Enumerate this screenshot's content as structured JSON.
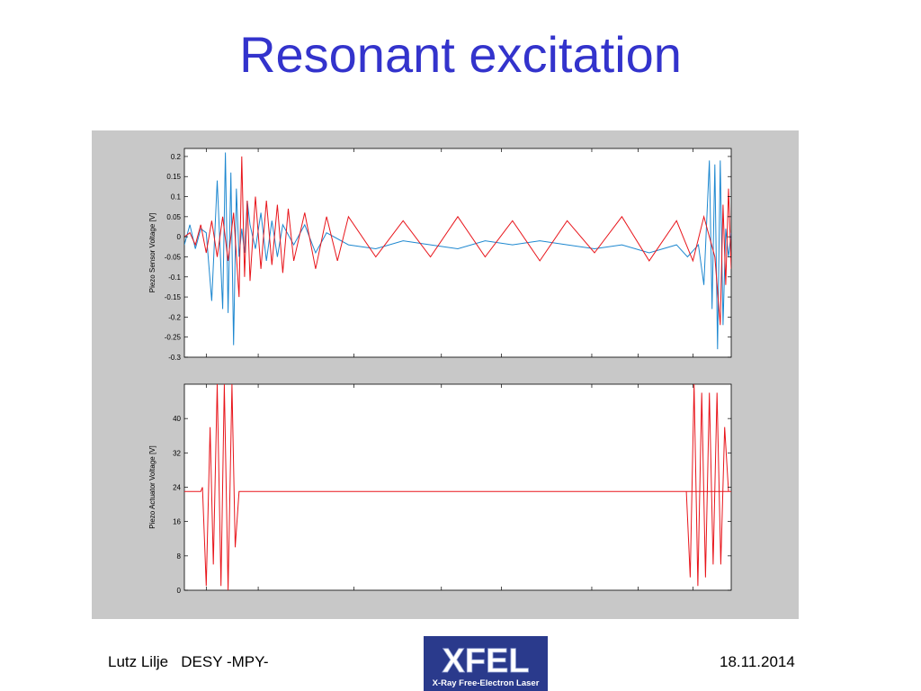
{
  "slide": {
    "title": "Resonant excitation",
    "footer_left": "Lutz Lilje   DESY -MPY-",
    "footer_date": "18.11.2014",
    "logo_text": "XFEL",
    "logo_subtext": "X-Ray Free-Electron Laser"
  },
  "colors": {
    "title": "#3333cc",
    "figure_background": "#c8c8c8",
    "series_red": "#e8151b",
    "series_blue": "#1e88d0",
    "logo_background": "#2a3a8c"
  },
  "chart_data": [
    {
      "type": "line",
      "ylabel": "Piezo Sensor Voltage [V]",
      "xlabel": "",
      "title": "",
      "ylim": [
        -0.3,
        0.22
      ],
      "xlim": [
        0,
        1
      ],
      "yticks": [
        0.2,
        0.15,
        0.1,
        0.05,
        0,
        -0.05,
        -0.1,
        -0.15,
        -0.2,
        -0.25,
        -0.3
      ],
      "ytick_labels": [
        "0.2",
        "0.15",
        "0.1",
        "0.05",
        "0",
        "-0.05",
        "-0.1",
        "-0.15",
        "-0.2",
        "-0.25",
        "-0.3"
      ],
      "xtick_positions": [
        0.04,
        0.135,
        0.31,
        0.47,
        0.58,
        0.745,
        0.83,
        0.93
      ],
      "grid": false,
      "legend": "none",
      "series": [
        {
          "color": "#1e88d0",
          "x": [
            0,
            0.01,
            0.02,
            0.03,
            0.04,
            0.05,
            0.06,
            0.07,
            0.075,
            0.08,
            0.085,
            0.09,
            0.095,
            0.1,
            0.105,
            0.11,
            0.115,
            0.12,
            0.13,
            0.14,
            0.15,
            0.16,
            0.17,
            0.18,
            0.2,
            0.22,
            0.24,
            0.26,
            0.3,
            0.35,
            0.4,
            0.45,
            0.5,
            0.55,
            0.6,
            0.65,
            0.7,
            0.75,
            0.8,
            0.85,
            0.9,
            0.92,
            0.94,
            0.95,
            0.96,
            0.965,
            0.97,
            0.975,
            0.98,
            0.985,
            0.99,
            0.995,
            1.0
          ],
          "y": [
            -0.02,
            0.03,
            -0.03,
            0.02,
            0.01,
            -0.16,
            0.14,
            -0.18,
            0.21,
            -0.19,
            0.16,
            -0.27,
            0.12,
            -0.05,
            0.02,
            -0.04,
            0.09,
            0.03,
            -0.03,
            0.06,
            -0.06,
            0.04,
            -0.05,
            0.03,
            -0.02,
            0.03,
            -0.04,
            0.01,
            -0.02,
            -0.03,
            -0.01,
            -0.02,
            -0.03,
            -0.01,
            -0.02,
            -0.01,
            -0.02,
            -0.03,
            -0.02,
            -0.04,
            -0.02,
            -0.05,
            -0.02,
            -0.12,
            0.19,
            -0.18,
            0.18,
            -0.28,
            0.19,
            -0.22,
            0.02,
            -0.05,
            0.01
          ]
        },
        {
          "color": "#e8151b",
          "x": [
            0,
            0.01,
            0.02,
            0.03,
            0.04,
            0.05,
            0.06,
            0.07,
            0.08,
            0.09,
            0.1,
            0.105,
            0.11,
            0.115,
            0.12,
            0.13,
            0.14,
            0.15,
            0.16,
            0.17,
            0.18,
            0.19,
            0.2,
            0.22,
            0.24,
            0.26,
            0.28,
            0.3,
            0.35,
            0.4,
            0.45,
            0.5,
            0.55,
            0.6,
            0.65,
            0.7,
            0.75,
            0.8,
            0.85,
            0.9,
            0.93,
            0.95,
            0.97,
            0.98,
            0.985,
            0.99,
            0.995,
            1.0
          ],
          "y": [
            0.0,
            0.01,
            -0.02,
            0.03,
            -0.04,
            0.04,
            -0.05,
            0.05,
            -0.06,
            0.06,
            -0.15,
            0.2,
            -0.1,
            0.09,
            -0.11,
            0.1,
            -0.08,
            0.09,
            -0.07,
            0.08,
            -0.09,
            0.07,
            -0.06,
            0.06,
            -0.08,
            0.05,
            -0.06,
            0.05,
            -0.05,
            0.04,
            -0.05,
            0.05,
            -0.05,
            0.04,
            -0.06,
            0.04,
            -0.04,
            0.05,
            -0.06,
            0.04,
            -0.06,
            0.05,
            -0.05,
            -0.22,
            0.08,
            -0.12,
            0.12,
            -0.08
          ]
        }
      ]
    },
    {
      "type": "line",
      "ylabel": "Piezo Actuator Voltage [V]",
      "xlabel": "",
      "title": "",
      "ylim": [
        0,
        48
      ],
      "xlim": [
        0,
        1
      ],
      "yticks": [
        0,
        8,
        16,
        24,
        32,
        40
      ],
      "ytick_labels": [
        "0",
        "8",
        "16",
        "24",
        "32",
        "40"
      ],
      "xtick_positions": [
        0.04,
        0.135,
        0.31,
        0.47,
        0.58,
        0.745,
        0.83,
        0.93
      ],
      "grid": false,
      "legend": "none",
      "series": [
        {
          "color": "#e8151b",
          "x": [
            0,
            0.03,
            0.033,
            0.04,
            0.047,
            0.053,
            0.06,
            0.067,
            0.073,
            0.08,
            0.087,
            0.093,
            0.1,
            0.11,
            1.0,
            0.918,
            0.925,
            0.932,
            0.939,
            0.946,
            0.953,
            0.96,
            0.967,
            0.974,
            0.981,
            0.988,
            0.995,
            1.0
          ],
          "y": [
            23,
            23,
            24,
            1,
            38,
            6,
            48,
            1,
            48,
            0,
            48,
            10,
            23,
            23,
            23,
            23,
            3,
            48,
            1,
            46,
            3,
            46,
            6,
            46,
            6,
            38,
            23,
            23
          ]
        }
      ]
    }
  ]
}
